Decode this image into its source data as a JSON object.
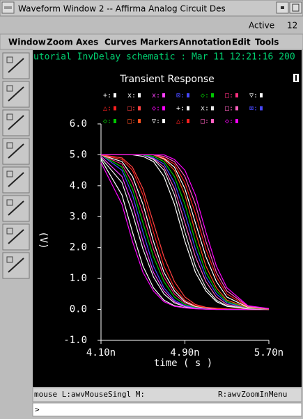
{
  "window": {
    "title": "Waveform Window 2 -- Affirma Analog Circuit Des",
    "status": "Active",
    "number": "12"
  },
  "menu": [
    "Window",
    "Zoom",
    "Axes",
    "Curves",
    "Markers",
    "Annotation",
    "Edit",
    "Tools"
  ],
  "header": "utorial InvDelay schematic : Mar 11 12:21:16 200",
  "status_bar": {
    "left": "mouse L:awvMouseSingl M:",
    "right": "R:awvZoomInMenu"
  },
  "prompt": ">",
  "chart_data": {
    "type": "line",
    "title": "Transient Response",
    "x_label": "time ( s )",
    "y_label": "(V)",
    "x": [
      4.1,
      4.3,
      4.4,
      4.5,
      4.6,
      4.7,
      4.8,
      4.9,
      5.0,
      5.1,
      5.2,
      5.3,
      5.5,
      5.7
    ],
    "xlim": [
      4.1,
      5.7
    ],
    "ylim": [
      -1,
      6
    ],
    "xticks": [
      {
        "value": 4.1,
        "label": "4.10n"
      },
      {
        "value": 4.9,
        "label": "4.90n"
      },
      {
        "value": 5.7,
        "label": "5.70n"
      }
    ],
    "yticks": [
      {
        "value": 6,
        "label": "6.0"
      },
      {
        "value": 5,
        "label": "5.0"
      },
      {
        "value": 4,
        "label": "4.0"
      },
      {
        "value": 3,
        "label": "3.0"
      },
      {
        "value": 2,
        "label": "2.0"
      },
      {
        "value": 1,
        "label": "1.0"
      },
      {
        "value": 0,
        "label": "0.0"
      },
      {
        "value": -1,
        "label": "-1.0"
      }
    ],
    "series": [
      {
        "name": "+:",
        "color": "#ffffff",
        "values": [
          4.85,
          3.7,
          2.5,
          1.4,
          0.7,
          0.3,
          0.12,
          0.06,
          0.03,
          0.01,
          0,
          0,
          0,
          0
        ]
      },
      {
        "name": "x:",
        "color": "#f0f0f0",
        "values": [
          4.9,
          4.1,
          3.1,
          1.95,
          1.05,
          0.5,
          0.21,
          0.09,
          0.05,
          0.02,
          0.01,
          0,
          0,
          0
        ]
      },
      {
        "name": "x:",
        "color": "#ff40ff",
        "values": [
          4.95,
          4.3,
          3.4,
          2.2,
          1.2,
          0.6,
          0.25,
          0.1,
          0.05,
          0.02,
          0.01,
          0,
          0,
          0
        ]
      },
      {
        "name": "⊠:",
        "color": "#4848ff",
        "values": [
          5.0,
          4.5,
          3.7,
          2.5,
          1.4,
          0.7,
          0.3,
          0.12,
          0.06,
          0.03,
          0.01,
          0,
          0,
          0
        ]
      },
      {
        "name": "◇:",
        "color": "#00c800",
        "values": [
          5.0,
          4.6,
          3.9,
          2.8,
          1.7,
          0.9,
          0.4,
          0.16,
          0.07,
          0.04,
          0.02,
          0,
          0,
          0
        ]
      },
      {
        "name": "□:",
        "color": "#ff3080",
        "values": [
          5.0,
          4.7,
          4.1,
          3.1,
          1.95,
          1.05,
          0.5,
          0.21,
          0.09,
          0.05,
          0.02,
          0.01,
          0,
          0
        ]
      },
      {
        "name": "▽:",
        "color": "#ffffff",
        "values": [
          5.0,
          4.78,
          4.3,
          3.4,
          2.2,
          1.2,
          0.6,
          0.25,
          0.1,
          0.05,
          0.02,
          0.01,
          0,
          0
        ]
      },
      {
        "name": "△:",
        "color": "#ff2020",
        "values": [
          5.0,
          4.85,
          4.5,
          3.7,
          2.5,
          1.4,
          0.7,
          0.3,
          0.12,
          0.06,
          0.03,
          0.01,
          0,
          0
        ]
      },
      {
        "name": "□:",
        "color": "#ff4040",
        "values": [
          5.0,
          4.9,
          4.6,
          3.9,
          2.8,
          1.7,
          0.9,
          0.4,
          0.16,
          0.07,
          0.04,
          0.02,
          0,
          0
        ]
      },
      {
        "name": "◇:",
        "color": "#ff00ff",
        "values": [
          4.75,
          3.4,
          2.2,
          1.2,
          0.6,
          0.25,
          0.1,
          0.05,
          0.02,
          0.01,
          0,
          0,
          0,
          0
        ]
      },
      {
        "name": "+:",
        "color": "#ffffff",
        "values": [
          5.0,
          5.0,
          5.0,
          4.95,
          4.78,
          4.3,
          3.4,
          2.2,
          1.2,
          0.6,
          0.25,
          0.1,
          0.02,
          0
        ]
      },
      {
        "name": "x:",
        "color": "#e8e8e8",
        "values": [
          5.0,
          5.0,
          5.0,
          5.0,
          4.85,
          4.5,
          3.7,
          2.5,
          1.4,
          0.7,
          0.3,
          0.12,
          0.03,
          0
        ]
      },
      {
        "name": "□:",
        "color": "#ff60c0",
        "values": [
          5.0,
          5.0,
          5.0,
          5.0,
          4.88,
          4.6,
          3.9,
          2.8,
          1.7,
          0.9,
          0.4,
          0.16,
          0.04,
          0
        ]
      },
      {
        "name": "⊠:",
        "color": "#4848ff",
        "values": [
          5.0,
          5.0,
          5.0,
          5.0,
          4.9,
          4.7,
          4.1,
          3.1,
          1.95,
          1.05,
          0.5,
          0.21,
          0.05,
          0.01
        ]
      },
      {
        "name": "◇:",
        "color": "#00c800",
        "values": [
          5.0,
          5.0,
          5.0,
          5.0,
          4.95,
          4.78,
          4.3,
          3.4,
          2.2,
          1.2,
          0.6,
          0.25,
          0.05,
          0.01
        ]
      },
      {
        "name": "□:",
        "color": "#ff5020",
        "values": [
          5.0,
          5.0,
          5.0,
          5.0,
          5.0,
          4.85,
          4.5,
          3.7,
          2.5,
          1.4,
          0.7,
          0.3,
          0.06,
          0.01
        ]
      },
      {
        "name": "▽:",
        "color": "#ffffff",
        "values": [
          5.0,
          5.0,
          5.0,
          5.0,
          5.0,
          4.88,
          4.6,
          3.9,
          2.8,
          1.7,
          0.9,
          0.4,
          0.07,
          0.02
        ]
      },
      {
        "name": "△:",
        "color": "#ff2020",
        "values": [
          5.0,
          5.0,
          5.0,
          5.0,
          5.0,
          4.9,
          4.7,
          4.1,
          3.1,
          1.95,
          1.05,
          0.5,
          0.09,
          0.02
        ]
      },
      {
        "name": "□:",
        "color": "#ff60c0",
        "values": [
          5.0,
          5.0,
          5.0,
          5.0,
          5.0,
          4.95,
          4.78,
          4.3,
          3.4,
          2.2,
          1.2,
          0.6,
          0.1,
          0.02
        ]
      },
      {
        "name": "◇:",
        "color": "#ff00ff",
        "values": [
          5.0,
          5.0,
          5.0,
          5.0,
          5.0,
          5.0,
          4.85,
          4.5,
          3.7,
          2.5,
          1.4,
          0.7,
          0.12,
          0.03
        ]
      }
    ]
  }
}
